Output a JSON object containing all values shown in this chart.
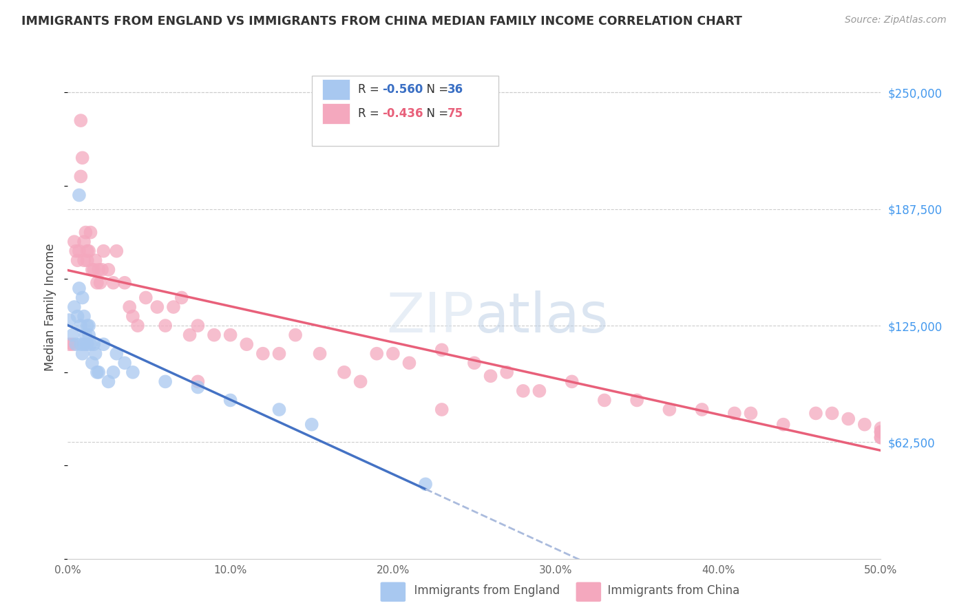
{
  "title": "IMMIGRANTS FROM ENGLAND VS IMMIGRANTS FROM CHINA MEDIAN FAMILY INCOME CORRELATION CHART",
  "source": "Source: ZipAtlas.com",
  "ylabel": "Median Family Income",
  "yticks": [
    62500,
    125000,
    187500,
    250000
  ],
  "ytick_labels": [
    "$62,500",
    "$125,000",
    "$187,500",
    "$250,000"
  ],
  "xlim": [
    0.0,
    0.5
  ],
  "ylim": [
    0,
    270000
  ],
  "legend_england": "Immigrants from England",
  "legend_china": "Immigrants from China",
  "R_england": "R = ",
  "R_england_val": "-0.560",
  "N_england_lbl": "  N = ",
  "N_england_val": "36",
  "R_china": "R = ",
  "R_china_val": "-0.436",
  "N_china_lbl": "  N = ",
  "N_china_val": "75",
  "color_england": "#a8c8f0",
  "color_china": "#f4a8be",
  "line_england": "#4472c4",
  "line_china": "#e8607a",
  "line_dash_color": "#aabbdd",
  "background_color": "#ffffff",
  "grid_color": "#cccccc",
  "england_x": [
    0.001,
    0.003,
    0.004,
    0.005,
    0.006,
    0.007,
    0.007,
    0.008,
    0.008,
    0.009,
    0.009,
    0.01,
    0.01,
    0.011,
    0.012,
    0.012,
    0.013,
    0.013,
    0.014,
    0.015,
    0.016,
    0.017,
    0.018,
    0.019,
    0.022,
    0.025,
    0.028,
    0.03,
    0.035,
    0.04,
    0.06,
    0.08,
    0.1,
    0.13,
    0.15,
    0.22
  ],
  "england_y": [
    128000,
    120000,
    135000,
    115000,
    130000,
    145000,
    195000,
    125000,
    115000,
    140000,
    110000,
    130000,
    115000,
    120000,
    125000,
    115000,
    125000,
    120000,
    115000,
    105000,
    115000,
    110000,
    100000,
    100000,
    115000,
    95000,
    100000,
    110000,
    105000,
    100000,
    95000,
    92000,
    85000,
    80000,
    72000,
    40000
  ],
  "china_x": [
    0.001,
    0.003,
    0.004,
    0.005,
    0.006,
    0.007,
    0.008,
    0.008,
    0.009,
    0.01,
    0.01,
    0.011,
    0.012,
    0.012,
    0.013,
    0.014,
    0.015,
    0.016,
    0.017,
    0.018,
    0.019,
    0.02,
    0.021,
    0.022,
    0.025,
    0.028,
    0.03,
    0.035,
    0.038,
    0.04,
    0.043,
    0.048,
    0.055,
    0.06,
    0.065,
    0.07,
    0.075,
    0.08,
    0.09,
    0.1,
    0.11,
    0.12,
    0.14,
    0.155,
    0.17,
    0.19,
    0.2,
    0.21,
    0.23,
    0.25,
    0.26,
    0.27,
    0.29,
    0.31,
    0.33,
    0.35,
    0.37,
    0.39,
    0.41,
    0.42,
    0.44,
    0.46,
    0.47,
    0.48,
    0.49,
    0.5,
    0.5,
    0.5,
    0.5,
    0.5,
    0.08,
    0.13,
    0.18,
    0.23,
    0.28
  ],
  "china_y": [
    115000,
    115000,
    170000,
    165000,
    160000,
    165000,
    235000,
    205000,
    215000,
    160000,
    170000,
    175000,
    160000,
    165000,
    165000,
    175000,
    155000,
    155000,
    160000,
    148000,
    155000,
    148000,
    155000,
    165000,
    155000,
    148000,
    165000,
    148000,
    135000,
    130000,
    125000,
    140000,
    135000,
    125000,
    135000,
    140000,
    120000,
    125000,
    120000,
    120000,
    115000,
    110000,
    120000,
    110000,
    100000,
    110000,
    110000,
    105000,
    112000,
    105000,
    98000,
    100000,
    90000,
    95000,
    85000,
    85000,
    80000,
    80000,
    78000,
    78000,
    72000,
    78000,
    78000,
    75000,
    72000,
    70000,
    68000,
    68000,
    65000,
    65000,
    95000,
    110000,
    95000,
    80000,
    90000
  ]
}
